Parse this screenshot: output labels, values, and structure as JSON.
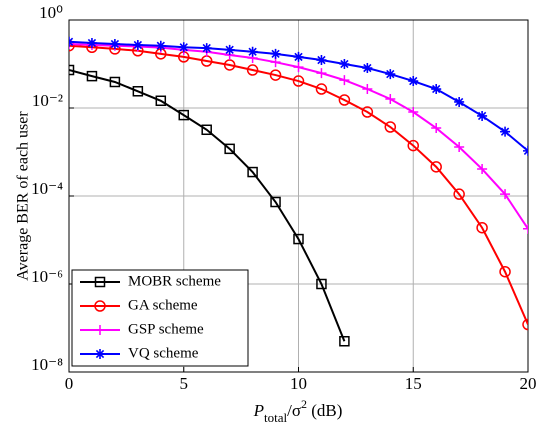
{
  "chart_data": {
    "type": "line",
    "ylabel": "Average BER of each user",
    "xlabel": {
      "base": "P",
      "sub": "total",
      "mid": "/σ",
      "sup": "2",
      "tail": " (dB)"
    },
    "x": [
      0,
      1,
      2,
      3,
      4,
      5,
      6,
      7,
      8,
      9,
      10,
      11,
      12,
      13,
      14,
      15,
      16,
      17,
      18,
      19,
      20
    ],
    "xlim": [
      0,
      20
    ],
    "xticks": [
      0,
      5,
      10,
      15,
      20
    ],
    "ylim": [
      1e-08,
      1
    ],
    "log_y": true,
    "yticks": [
      {
        "value": 1,
        "label": "10⁰"
      },
      {
        "value": 0.01,
        "label": "10⁻²"
      },
      {
        "value": 0.0001,
        "label": "10⁻⁴"
      },
      {
        "value": 1e-06,
        "label": "10⁻⁶"
      },
      {
        "value": 1e-08,
        "label": "10⁻⁸"
      }
    ],
    "grid": true,
    "legend": "lower left",
    "series": [
      {
        "name": "MOBR scheme",
        "color": "#000000",
        "marker": "square",
        "values": [
          0.073,
          0.053,
          0.039,
          0.024,
          0.0146,
          0.0069,
          0.0032,
          0.00118,
          0.00035,
          7.3e-05,
          1.05e-05,
          1e-06,
          5e-08,
          null,
          null,
          null,
          null,
          null,
          null,
          null,
          null
        ]
      },
      {
        "name": "GA scheme",
        "color": "#ff0000",
        "marker": "circle",
        "values": [
          0.26,
          0.24,
          0.22,
          0.2,
          0.17,
          0.145,
          0.117,
          0.095,
          0.073,
          0.056,
          0.041,
          0.027,
          0.0152,
          0.0081,
          0.0037,
          0.0014,
          0.00046,
          0.00011,
          1.9e-05,
          1.9e-06,
          1.2e-07
        ]
      },
      {
        "name": "GSP scheme",
        "color": "#ff00ff",
        "marker": "plus",
        "values": [
          0.285,
          0.27,
          0.26,
          0.25,
          0.235,
          0.21,
          0.19,
          0.16,
          0.137,
          0.11,
          0.085,
          0.062,
          0.043,
          0.027,
          0.016,
          0.0081,
          0.0035,
          0.0013,
          0.00041,
          0.00011,
          1.8e-05
        ]
      },
      {
        "name": "VQ scheme",
        "color": "#0000ff",
        "marker": "star",
        "values": [
          0.32,
          0.3,
          0.285,
          0.27,
          0.26,
          0.24,
          0.23,
          0.21,
          0.19,
          0.17,
          0.145,
          0.123,
          0.1,
          0.081,
          0.059,
          0.041,
          0.027,
          0.0137,
          0.0066,
          0.0029,
          0.00106
        ]
      }
    ]
  }
}
